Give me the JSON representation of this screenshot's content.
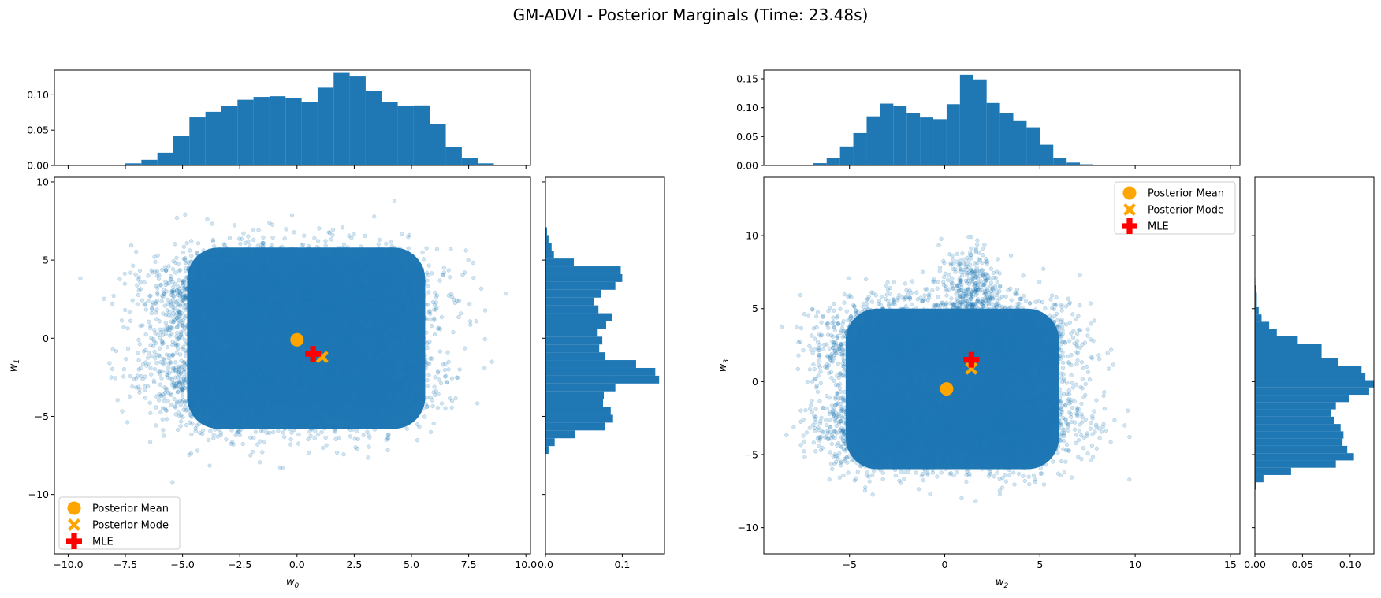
{
  "title": "GM-ADVI - Posterior Marginals (Time: 23.48s)",
  "colors": {
    "scatter": "#1f77b4",
    "hist": "#1f77b4",
    "mean": "#ffa500",
    "mode": "#ffa500",
    "mle": "#ff0000"
  },
  "legend_labels": [
    "Posterior Mean",
    "Posterior Mode",
    "MLE"
  ],
  "chart_data": [
    {
      "type": "scatter",
      "id": "left-joint",
      "xlabel": "w",
      "xlabel_sub": "0",
      "ylabel": "w",
      "ylabel_sub": "1",
      "xlim": [
        -10.6,
        10.2
      ],
      "ylim": [
        -13.8,
        10.3
      ],
      "xticks": [
        -10.0,
        -7.5,
        -5.0,
        -2.5,
        0.0,
        2.5,
        5.0,
        7.5,
        10.0
      ],
      "xtick_labels": [
        "−10.0",
        "−7.5",
        "−5.0",
        "−2.5",
        "0.0",
        "2.5",
        "5.0",
        "7.5",
        "10.0"
      ],
      "yticks": [
        10,
        5,
        0,
        -5,
        -10
      ],
      "ytick_labels": [
        "10",
        "5",
        "0",
        "−5",
        "−10"
      ],
      "legend_position": "lower-left",
      "markers": {
        "posterior_mean": [
          0.0,
          -0.1
        ],
        "posterior_mode": [
          1.1,
          -1.2
        ],
        "mle": [
          0.7,
          -1.0
        ]
      },
      "cloud": {
        "components": [
          {
            "cx": -2.5,
            "cy": 2.5,
            "sx": 1.9,
            "sy": 1.6,
            "w": 1
          },
          {
            "cx": 2.0,
            "cy": 2.5,
            "sx": 1.9,
            "sy": 1.6,
            "w": 1
          },
          {
            "cx": -2.5,
            "cy": -2.5,
            "sx": 1.9,
            "sy": 1.6,
            "w": 1
          },
          {
            "cx": 2.0,
            "cy": -2.5,
            "sx": 1.9,
            "sy": 1.6,
            "w": 1
          }
        ],
        "clip_x": [
          -4.8,
          5.6
        ],
        "clip_y": [
          -5.8,
          5.8
        ]
      },
      "top_hist": {
        "ylim": [
          0,
          0.135
        ],
        "yticks": [
          0.0,
          0.05,
          0.1
        ],
        "ytick_labels": [
          "0.00",
          "0.05",
          "0.10"
        ],
        "bin_edges": [
          -8.9,
          -8.2,
          -7.5,
          -6.8,
          -6.1,
          -5.4,
          -4.7,
          -4.0,
          -3.3,
          -2.6,
          -1.9,
          -1.2,
          -0.5,
          0.2,
          0.9,
          1.6,
          2.3,
          3.0,
          3.7,
          4.4,
          5.1,
          5.8,
          6.5,
          7.2,
          7.9,
          8.6
        ],
        "density": [
          0.0005,
          0.001,
          0.003,
          0.008,
          0.018,
          0.042,
          0.068,
          0.076,
          0.084,
          0.093,
          0.097,
          0.098,
          0.095,
          0.09,
          0.11,
          0.131,
          0.126,
          0.105,
          0.09,
          0.084,
          0.085,
          0.058,
          0.026,
          0.01,
          0.003
        ]
      },
      "right_hist": {
        "xlim": [
          0,
          0.155
        ],
        "xticks": [
          0.0,
          0.1
        ],
        "xtick_labels": [
          "0.0",
          "0.1"
        ],
        "bin_edges": [
          -7.4,
          -6.9,
          -6.4,
          -5.9,
          -5.4,
          -4.9,
          -4.4,
          -3.9,
          -3.4,
          -2.9,
          -2.4,
          -1.9,
          -1.4,
          -0.9,
          -0.4,
          0.1,
          0.6,
          1.1,
          1.6,
          2.1,
          2.6,
          3.1,
          3.6,
          4.1,
          4.6,
          5.1,
          5.6,
          6.1,
          6.6,
          7.1
        ],
        "density": [
          0.004,
          0.012,
          0.038,
          0.078,
          0.088,
          0.085,
          0.075,
          0.076,
          0.091,
          0.148,
          0.143,
          0.118,
          0.078,
          0.07,
          0.074,
          0.068,
          0.079,
          0.087,
          0.069,
          0.063,
          0.072,
          0.091,
          0.1,
          0.098,
          0.037,
          0.011,
          0.008,
          0.004,
          0.002
        ]
      }
    },
    {
      "type": "scatter",
      "id": "right-joint",
      "xlabel": "w",
      "xlabel_sub": "2",
      "ylabel": "w",
      "ylabel_sub": "3",
      "xlim": [
        -9.5,
        15.5
      ],
      "ylim": [
        -11.8,
        14.0
      ],
      "xticks": [
        -5,
        0,
        5,
        10,
        15
      ],
      "xtick_labels": [
        "−5",
        "0",
        "5",
        "10",
        "15"
      ],
      "yticks": [
        10,
        5,
        0,
        -5,
        -10
      ],
      "ytick_labels": [
        "10",
        "5",
        "0",
        "−5",
        "−10"
      ],
      "legend_position": "upper-right",
      "markers": {
        "posterior_mean": [
          0.1,
          -0.5
        ],
        "posterior_mode": [
          1.4,
          0.9
        ],
        "mle": [
          1.4,
          1.5
        ]
      },
      "cloud": {
        "components": [
          {
            "cx": -2.5,
            "cy": 2.5,
            "sx": 1.9,
            "sy": 1.5,
            "w": 1
          },
          {
            "cx": 3.0,
            "cy": 2.5,
            "sx": 1.9,
            "sy": 1.5,
            "w": 1
          },
          {
            "cx": -2.5,
            "cy": -3.0,
            "sx": 1.9,
            "sy": 1.5,
            "w": 1
          },
          {
            "cx": 3.0,
            "cy": -3.0,
            "sx": 1.9,
            "sy": 1.5,
            "w": 1
          },
          {
            "cx": 1.5,
            "cy": 6.5,
            "sx": 0.7,
            "sy": 1.3,
            "w": 0.15
          }
        ],
        "clip_x": [
          -5.2,
          6.0
        ],
        "clip_y": [
          -6.0,
          5.0
        ]
      },
      "top_hist": {
        "ylim": [
          0,
          0.165
        ],
        "yticks": [
          0.0,
          0.05,
          0.1,
          0.15
        ],
        "ytick_labels": [
          "0.00",
          "0.05",
          "0.10",
          "0.15"
        ],
        "bin_edges": [
          -7.6,
          -6.9,
          -6.2,
          -5.5,
          -4.8,
          -4.1,
          -3.4,
          -2.7,
          -2.0,
          -1.3,
          -0.6,
          0.1,
          0.8,
          1.5,
          2.2,
          2.9,
          3.6,
          4.3,
          5.0,
          5.7,
          6.4,
          7.1,
          7.8,
          8.5,
          9.2,
          9.9,
          10.6,
          11.3
        ],
        "density": [
          0.001,
          0.004,
          0.013,
          0.033,
          0.056,
          0.085,
          0.107,
          0.103,
          0.09,
          0.083,
          0.08,
          0.106,
          0.157,
          0.149,
          0.108,
          0.09,
          0.078,
          0.066,
          0.036,
          0.013,
          0.005,
          0.002,
          0.001,
          0.0008,
          0.0006,
          0.0004,
          0.0002
        ]
      },
      "right_hist": {
        "xlim": [
          0,
          0.125
        ],
        "xticks": [
          0.0,
          0.05,
          0.1
        ],
        "xtick_labels": [
          "0.00",
          "0.05",
          "0.10"
        ],
        "bin_edges": [
          -7.4,
          -6.9,
          -6.4,
          -5.9,
          -5.4,
          -4.9,
          -4.4,
          -3.9,
          -3.4,
          -2.9,
          -2.4,
          -1.9,
          -1.4,
          -0.9,
          -0.4,
          0.1,
          0.6,
          1.1,
          1.6,
          2.1,
          2.6,
          3.1,
          3.6,
          4.1,
          4.6,
          5.1,
          5.6,
          6.1,
          6.6,
          7.1,
          7.6
        ],
        "density": [
          0.001,
          0.009,
          0.038,
          0.085,
          0.104,
          0.097,
          0.092,
          0.093,
          0.09,
          0.083,
          0.08,
          0.085,
          0.099,
          0.12,
          0.125,
          0.116,
          0.112,
          0.087,
          0.07,
          0.07,
          0.045,
          0.023,
          0.015,
          0.007,
          0.004,
          0.002,
          0.002,
          0.001,
          0.0005,
          0.0002
        ]
      }
    }
  ]
}
